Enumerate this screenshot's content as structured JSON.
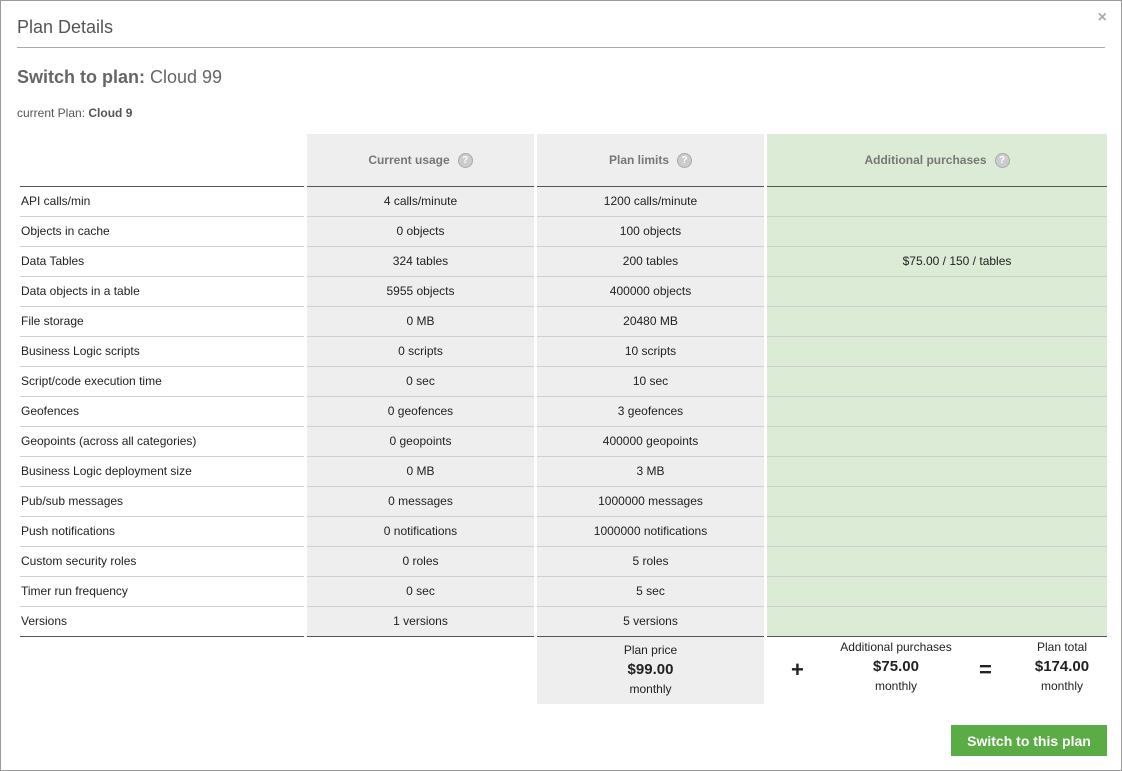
{
  "modal": {
    "title": "Plan Details",
    "close_label": "×"
  },
  "switch": {
    "prefix": "Switch to plan:",
    "plan": "Cloud 99"
  },
  "current": {
    "prefix": "current Plan:",
    "plan": "Cloud 9"
  },
  "headers": {
    "usage": "Current usage",
    "limits": "Plan limits",
    "additional": "Additional purchases",
    "help_glyph": "?"
  },
  "rows": [
    {
      "label": "API calls/min",
      "usage": "4 calls/minute",
      "limit": "1200 calls/minute",
      "additional": ""
    },
    {
      "label": "Objects in cache",
      "usage": "0 objects",
      "limit": "100 objects",
      "additional": ""
    },
    {
      "label": "Data Tables",
      "usage": "324 tables",
      "limit": "200 tables",
      "additional": "$75.00 / 150 / tables"
    },
    {
      "label": "Data objects in a table",
      "usage": "5955 objects",
      "limit": "400000 objects",
      "additional": ""
    },
    {
      "label": "File storage",
      "usage": "0 MB",
      "limit": "20480 MB",
      "additional": ""
    },
    {
      "label": "Business Logic scripts",
      "usage": "0 scripts",
      "limit": "10 scripts",
      "additional": ""
    },
    {
      "label": "Script/code execution time",
      "usage": "0 sec",
      "limit": "10 sec",
      "additional": ""
    },
    {
      "label": "Geofences",
      "usage": "0 geofences",
      "limit": "3 geofences",
      "additional": ""
    },
    {
      "label": "Geopoints (across all categories)",
      "usage": "0 geopoints",
      "limit": "400000 geopoints",
      "additional": ""
    },
    {
      "label": "Business Logic deployment size",
      "usage": "0 MB",
      "limit": "3 MB",
      "additional": ""
    },
    {
      "label": "Pub/sub messages",
      "usage": "0 messages",
      "limit": "1000000 messages",
      "additional": ""
    },
    {
      "label": "Push notifications",
      "usage": "0 notifications",
      "limit": "1000000 notifications",
      "additional": ""
    },
    {
      "label": "Custom security roles",
      "usage": "0 roles",
      "limit": "5 roles",
      "additional": ""
    },
    {
      "label": "Timer run frequency",
      "usage": "0 sec",
      "limit": "5 sec",
      "additional": ""
    },
    {
      "label": "Versions",
      "usage": "1 versions",
      "limit": "5 versions",
      "additional": ""
    }
  ],
  "summary": {
    "plan_price_label": "Plan price",
    "plan_price": "$99.00",
    "plan_period": "monthly",
    "plus": "+",
    "additional_label": "Additional purchases",
    "additional_price": "$75.00",
    "additional_period": "monthly",
    "equals": "=",
    "total_label": "Plan total",
    "total_price": "$174.00",
    "total_period": "monthly"
  },
  "actions": {
    "switch_button": "Switch to this plan"
  },
  "colors": {
    "grey_column": "#eeeeee",
    "green_column": "#dcebd5",
    "button": "#5aac44"
  }
}
